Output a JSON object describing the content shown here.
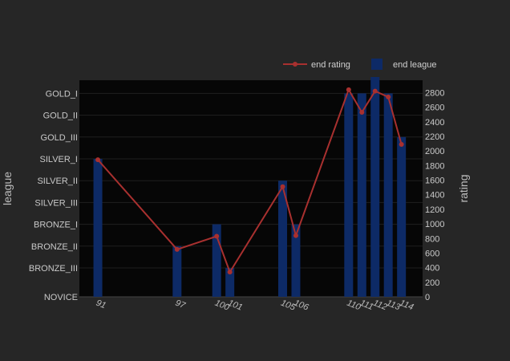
{
  "chart_data": {
    "type": "bar+line",
    "x": [
      91,
      97,
      100,
      101,
      105,
      106,
      110,
      111,
      112,
      113,
      114
    ],
    "x_tick_labels": [
      "91",
      "97",
      "100",
      "101",
      "105",
      "106",
      "110",
      "111",
      "112",
      "113",
      "114"
    ],
    "ylabel_left": "league",
    "ylabel_right": "rating",
    "league_categories": [
      "NOVICE",
      "BRONZE_III",
      "BRONZE_II",
      "BRONZE_I",
      "SILVER_III",
      "SILVER_II",
      "SILVER_I",
      "GOLD_III",
      "GOLD_II",
      "GOLD_I"
    ],
    "rating_ticks": [
      0,
      200,
      400,
      600,
      800,
      1000,
      1200,
      1400,
      1600,
      1800,
      2000,
      2200,
      2400,
      2600,
      2800
    ],
    "rating_range": [
      0,
      2970
    ],
    "grid": true,
    "legend_position": "top-right",
    "series": [
      {
        "name": "end league",
        "type": "bar",
        "color": "#0d2a66",
        "values": [
          "SILVER_I",
          "BRONZE_II",
          "BRONZE_I",
          "BRONZE_III",
          "SILVER_II",
          "BRONZE_I",
          "GOLD_I",
          "GOLD_I",
          "GOLD",
          "GOLD_I",
          "GOLD_III"
        ]
      },
      {
        "name": "end rating",
        "type": "line",
        "color": "#a8302f",
        "values": [
          1880,
          650,
          830,
          340,
          1510,
          840,
          2840,
          2530,
          2820,
          2740,
          2090
        ]
      }
    ]
  }
}
